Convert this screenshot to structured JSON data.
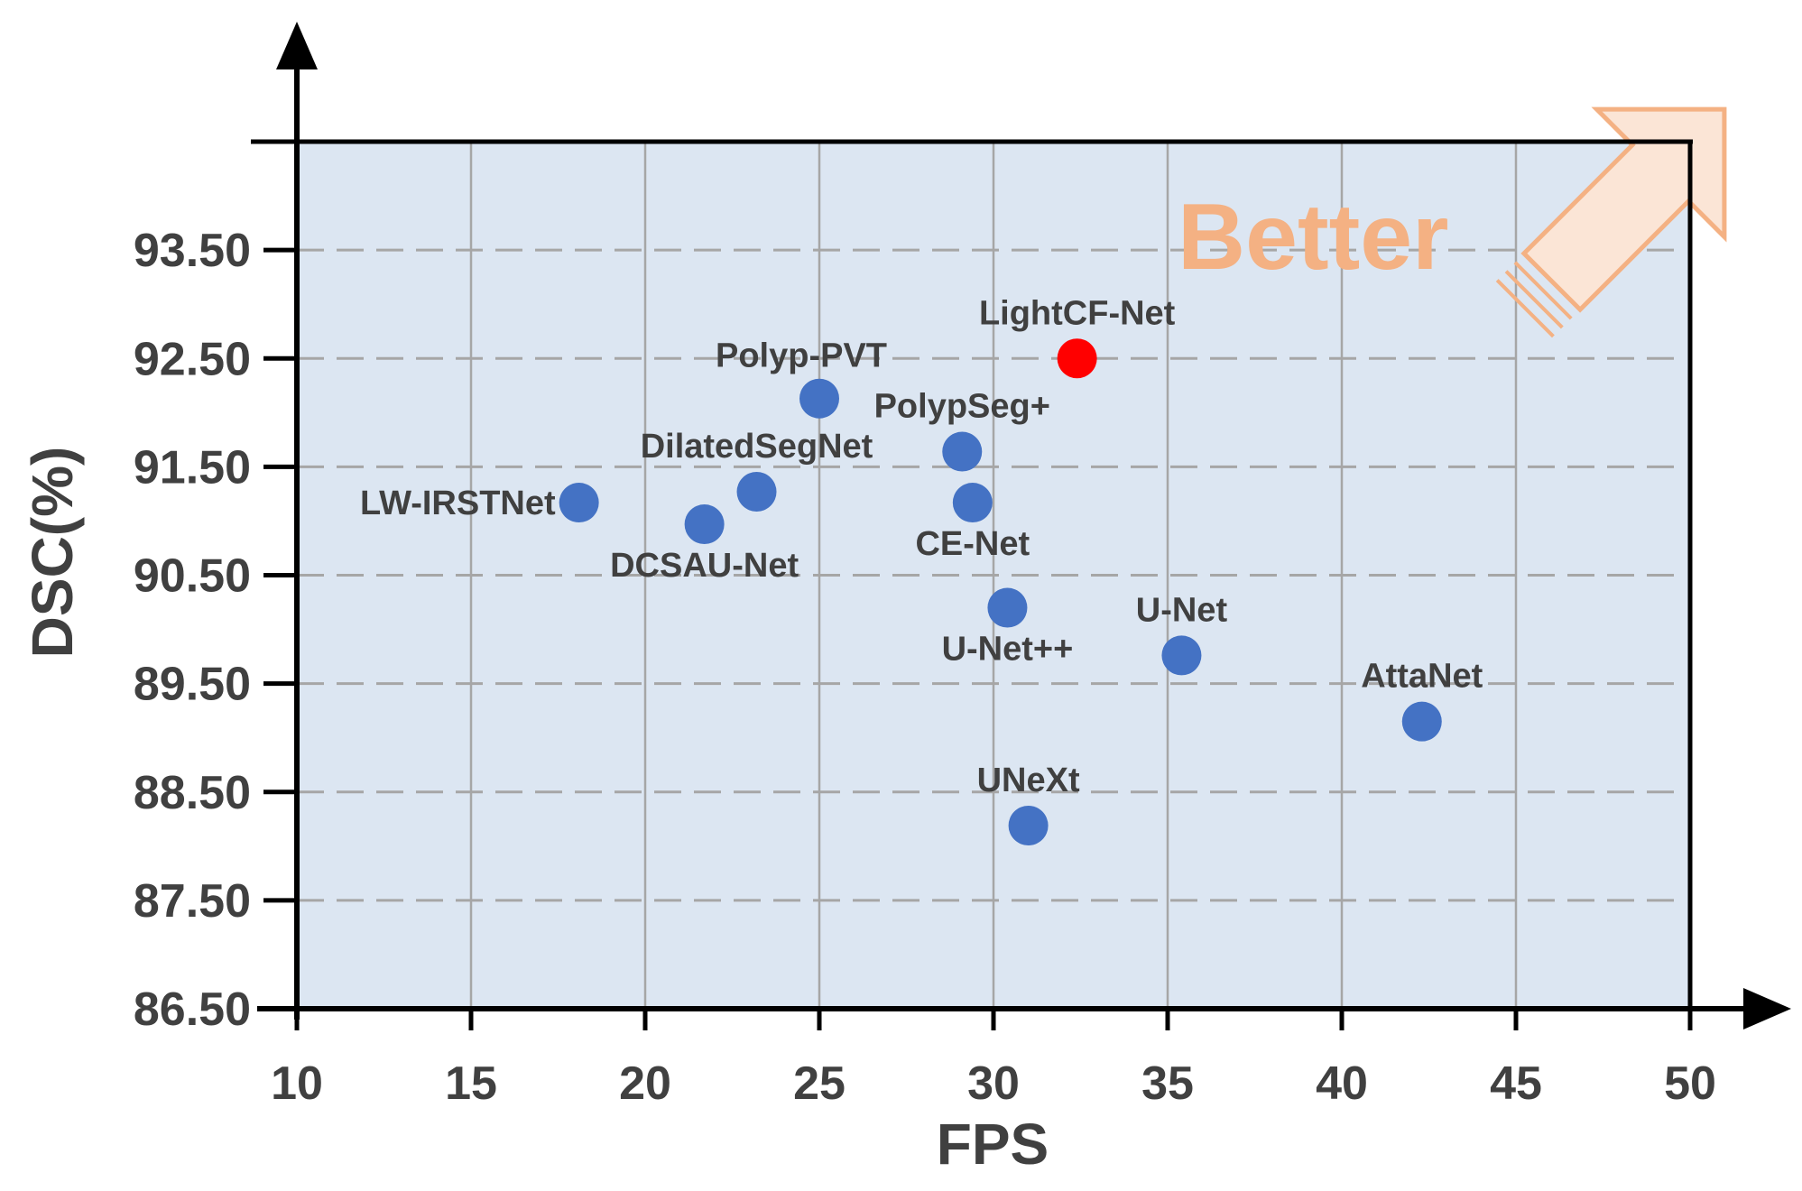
{
  "chart_data": {
    "type": "scatter",
    "xlabel": "FPS",
    "ylabel": "DSC(%)",
    "xlim": [
      10,
      50
    ],
    "ylim": [
      86.5,
      94.5
    ],
    "xticks": [
      10,
      15,
      20,
      25,
      30,
      35,
      40,
      45,
      50
    ],
    "xtick_labels": [
      "10",
      "15",
      "20",
      "25",
      "30",
      "35",
      "40",
      "45",
      "50"
    ],
    "yticks": [
      86.5,
      87.5,
      88.5,
      89.5,
      90.5,
      91.5,
      92.5,
      93.5
    ],
    "ytick_labels": [
      "86.50",
      "87.50",
      "88.50",
      "89.50",
      "90.50",
      "91.50",
      "92.50",
      "93.50"
    ],
    "grid": true,
    "annotation": "Better",
    "colors": {
      "background": "#dce6f2",
      "point": "#4472c4",
      "highlight": "#ff0000",
      "grid_vertical": "#a6a6a6",
      "grid_horizontal": "#a6a6a6",
      "better": "#f4b183",
      "arrow_fill": "#fbe5d6"
    },
    "points": [
      {
        "name": "LightCF-Net",
        "x": 32.4,
        "y": 92.5,
        "highlight": true,
        "label_pos": "above"
      },
      {
        "name": "Polyp-PVT",
        "x": 25.0,
        "y": 92.13,
        "highlight": false,
        "label_pos": "above-left"
      },
      {
        "name": "PolypSeg+",
        "x": 29.1,
        "y": 91.64,
        "highlight": false,
        "label_pos": "above"
      },
      {
        "name": "DilatedSegNet",
        "x": 23.2,
        "y": 91.27,
        "highlight": false,
        "label_pos": "above"
      },
      {
        "name": "LW-IRSTNet",
        "x": 18.1,
        "y": 91.17,
        "highlight": false,
        "label_pos": "left"
      },
      {
        "name": "DCSAU-Net",
        "x": 21.7,
        "y": 90.97,
        "highlight": false,
        "label_pos": "below"
      },
      {
        "name": "CE-Net",
        "x": 29.4,
        "y": 91.17,
        "highlight": false,
        "label_pos": "below"
      },
      {
        "name": "U-Net++",
        "x": 30.4,
        "y": 90.2,
        "highlight": false,
        "label_pos": "below"
      },
      {
        "name": "U-Net",
        "x": 35.4,
        "y": 89.76,
        "highlight": false,
        "label_pos": "above"
      },
      {
        "name": "AttaNet",
        "x": 42.3,
        "y": 89.15,
        "highlight": false,
        "label_pos": "above"
      },
      {
        "name": "UNeXt",
        "x": 31.0,
        "y": 88.19,
        "highlight": false,
        "label_pos": "above"
      }
    ]
  }
}
